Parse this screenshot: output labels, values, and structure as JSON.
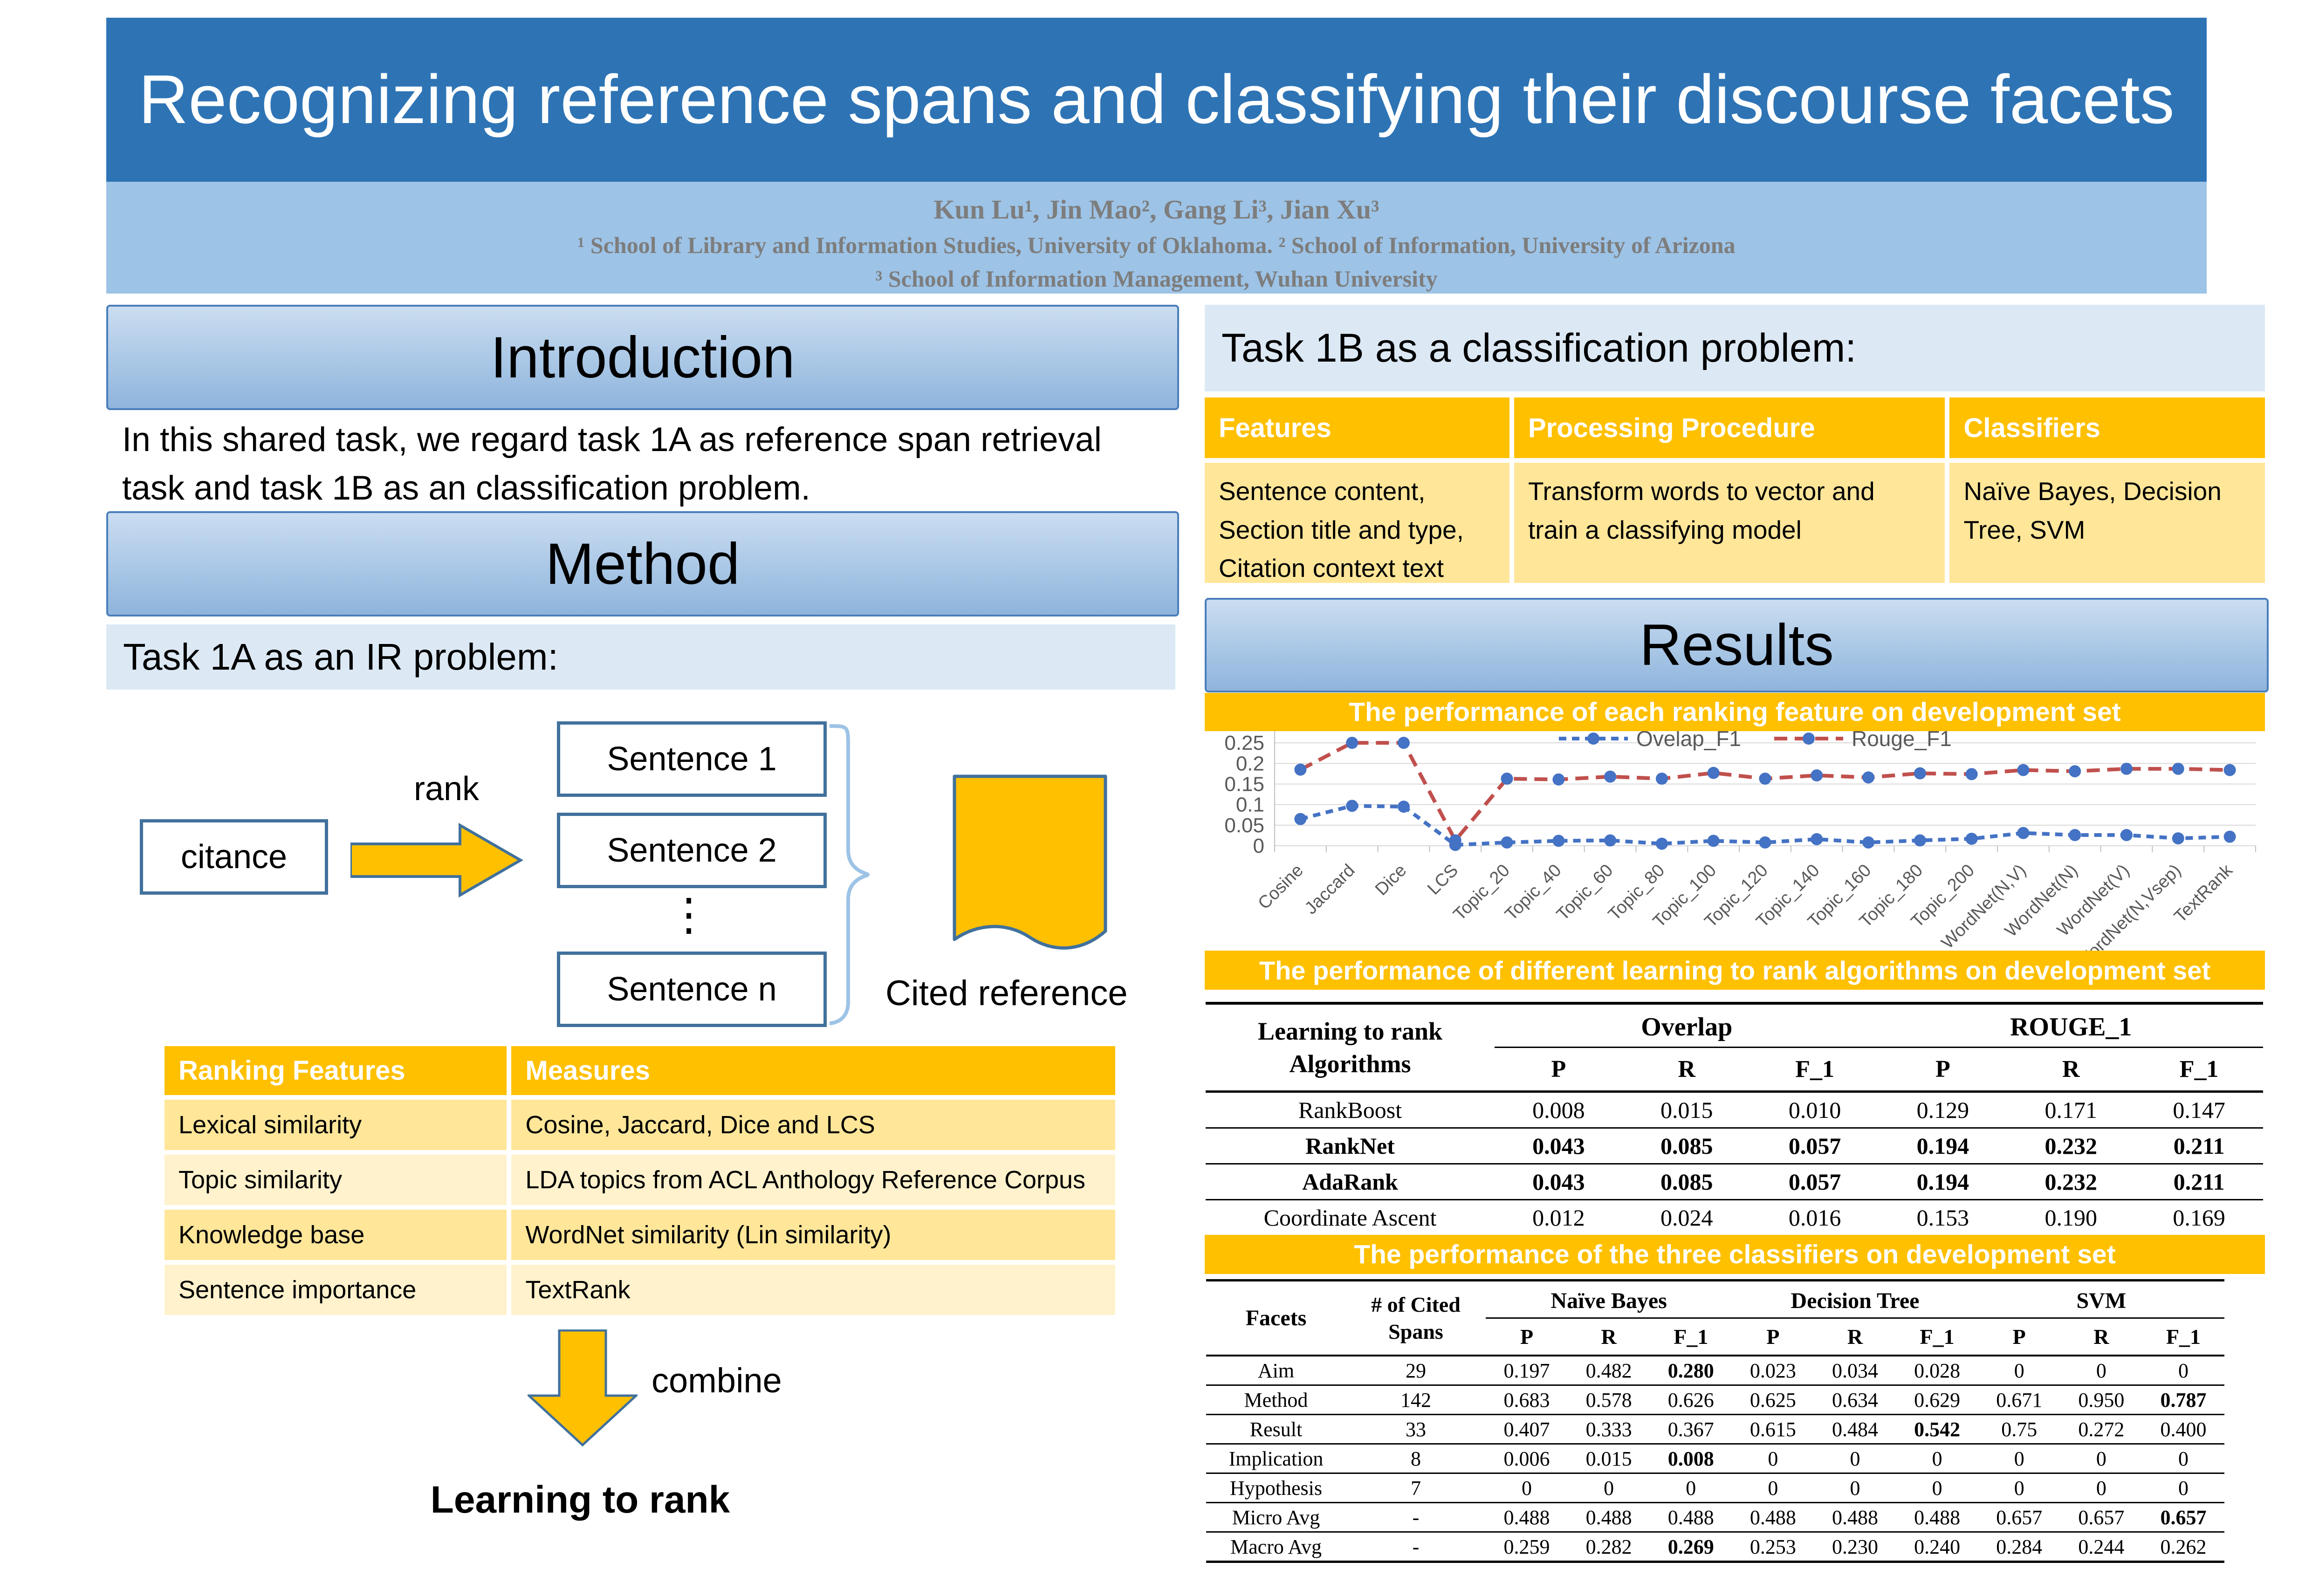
{
  "header": {
    "title": "Recognizing reference spans and classifying their discourse facets",
    "authors": "Kun Lu¹, Jin Mao², Gang Li³, Jian Xu³",
    "affiliation1": "¹ School of Library and Information Studies, University of Oklahoma. ² School of Information, University of Arizona",
    "affiliation2": "³ School of Information Management, Wuhan University"
  },
  "intro": {
    "title": "Introduction",
    "body": "In this shared task, we regard task 1A as reference span retrieval task and task 1B as an classification problem."
  },
  "method": {
    "title": "Method",
    "task1a_label": "Task 1A as an IR problem:"
  },
  "diagram": {
    "citance": "citance",
    "rank_label": "rank",
    "sentences": [
      "Sentence 1",
      "Sentence 2",
      "Sentence n"
    ],
    "dots": "⋮",
    "cited_reference": "Cited reference",
    "combine_label": "combine",
    "learning_to_rank": "Learning to rank"
  },
  "ranking_table": {
    "headers": [
      "Ranking Features",
      "Measures"
    ],
    "rows": [
      [
        "Lexical similarity",
        "Cosine, Jaccard, Dice and LCS"
      ],
      [
        "Topic similarity",
        "LDA topics from ACL Anthology Reference Corpus"
      ],
      [
        "Knowledge base",
        "WordNet similarity (Lin similarity)"
      ],
      [
        "Sentence importance",
        "TextRank"
      ]
    ]
  },
  "task1b": {
    "title": "Task 1B as a classification problem:",
    "headers": [
      "Features",
      "Processing Procedure",
      "Classifiers"
    ],
    "row": [
      "Sentence content, Section title and type, Citation context text",
      "Transform words to vector and train a classifying model",
      "Naïve Bayes, Decision Tree, SVM"
    ]
  },
  "results": {
    "title": "Results",
    "banner_ranking_features": "The performance of each ranking feature on development set",
    "banner_l2r": "The performance of different learning to rank algorithms on development set",
    "banner_classifiers": "The performance of the three classifiers on development set"
  },
  "chart_data": {
    "type": "line",
    "x": [
      "Cosine",
      "Jaccard",
      "Dice",
      "LCS",
      "Topic_20",
      "Topic_40",
      "Topic_60",
      "Topic_80",
      "Topic_100",
      "Topic_120",
      "Topic_140",
      "Topic_160",
      "Topic_180",
      "Topic_200",
      "WordNet(N,V)",
      "WordNet(N)",
      "WordNet(V)",
      "WordNet(N,Vsep)",
      "TextRank"
    ],
    "series": [
      {
        "name": "Ovelap_F1",
        "color": "#4472C4",
        "dash": "16 12",
        "values": [
          0.065,
          0.097,
          0.095,
          0.002,
          0.008,
          0.012,
          0.013,
          0.005,
          0.012,
          0.008,
          0.016,
          0.008,
          0.013,
          0.017,
          0.031,
          0.026,
          0.026,
          0.018,
          0.022
        ]
      },
      {
        "name": "Rouge_F1",
        "color": "#C0504D",
        "dash": "28 16",
        "values": [
          0.185,
          0.25,
          0.25,
          0.013,
          0.163,
          0.161,
          0.168,
          0.163,
          0.177,
          0.163,
          0.171,
          0.166,
          0.176,
          0.174,
          0.184,
          0.181,
          0.187,
          0.187,
          0.184
        ]
      }
    ],
    "marker_color": "#4472C4",
    "ylim": [
      0,
      0.3
    ],
    "ytick_step": 0.05,
    "grid": true,
    "legend_position": "top",
    "title": "",
    "xlabel": "",
    "ylabel": ""
  },
  "l2r_table": {
    "row_header_line1": "Learning to rank",
    "row_header_line2": "Algorithms",
    "groups": [
      "Overlap",
      "ROUGE_1"
    ],
    "sub_headers": [
      "P",
      "R",
      "F_1"
    ],
    "rows": [
      {
        "label": "RankBoost",
        "values": [
          "0.008",
          "0.015",
          "0.010",
          "0.129",
          "0.171",
          "0.147"
        ],
        "bold": false
      },
      {
        "label": "RankNet",
        "values": [
          "0.043",
          "0.085",
          "0.057",
          "0.194",
          "0.232",
          "0.211"
        ],
        "bold": true
      },
      {
        "label": "AdaRank",
        "values": [
          "0.043",
          "0.085",
          "0.057",
          "0.194",
          "0.232",
          "0.211"
        ],
        "bold": true
      },
      {
        "label": "Coordinate Ascent",
        "values": [
          "0.012",
          "0.024",
          "0.016",
          "0.153",
          "0.190",
          "0.169"
        ],
        "bold": false
      }
    ]
  },
  "classifier_table": {
    "col1_header": "Facets",
    "col2_header_line1": "# of Cited",
    "col2_header_line2": "Spans",
    "groups": [
      "Naïve Bayes",
      "Decision Tree",
      "SVM"
    ],
    "sub_headers": [
      "P",
      "R",
      "F_1"
    ],
    "rows": [
      {
        "label": "Aim",
        "spans": "29",
        "values": [
          "0.197",
          "0.482",
          "0.280",
          "0.023",
          "0.034",
          "0.028",
          "0",
          "0",
          "0"
        ],
        "bold": [
          false,
          false,
          true,
          false,
          false,
          false,
          false,
          false,
          false
        ]
      },
      {
        "label": "Method",
        "spans": "142",
        "values": [
          "0.683",
          "0.578",
          "0.626",
          "0.625",
          "0.634",
          "0.629",
          "0.671",
          "0.950",
          "0.787"
        ],
        "bold": [
          false,
          false,
          false,
          false,
          false,
          false,
          false,
          false,
          true
        ]
      },
      {
        "label": "Result",
        "spans": "33",
        "values": [
          "0.407",
          "0.333",
          "0.367",
          "0.615",
          "0.484",
          "0.542",
          "0.75",
          "0.272",
          "0.400"
        ],
        "bold": [
          false,
          false,
          false,
          false,
          false,
          true,
          false,
          false,
          false
        ]
      },
      {
        "label": "Implication",
        "spans": "8",
        "values": [
          "0.006",
          "0.015",
          "0.008",
          "0",
          "0",
          "0",
          "0",
          "0",
          "0"
        ],
        "bold": [
          false,
          false,
          true,
          false,
          false,
          false,
          false,
          false,
          false
        ]
      },
      {
        "label": "Hypothesis",
        "spans": "7",
        "values": [
          "0",
          "0",
          "0",
          "0",
          "0",
          "0",
          "0",
          "0",
          "0"
        ],
        "bold": [
          false,
          false,
          false,
          false,
          false,
          false,
          false,
          false,
          false
        ]
      },
      {
        "label": "Micro Avg",
        "spans": "-",
        "values": [
          "0.488",
          "0.488",
          "0.488",
          "0.488",
          "0.488",
          "0.488",
          "0.657",
          "0.657",
          "0.657"
        ],
        "bold": [
          false,
          false,
          false,
          false,
          false,
          false,
          false,
          false,
          true
        ]
      },
      {
        "label": "Macro Avg",
        "spans": "-",
        "values": [
          "0.259",
          "0.282",
          "0.269",
          "0.253",
          "0.230",
          "0.240",
          "0.284",
          "0.244",
          "0.262"
        ],
        "bold": [
          false,
          false,
          true,
          false,
          false,
          false,
          false,
          false,
          false
        ]
      }
    ]
  },
  "colors": {
    "title_blue": "#2E74B5",
    "band_blue": "#9DC3E6",
    "gold": "#FFC000",
    "gold_light": "#FFE699",
    "gold_lighter": "#FFF2CC",
    "panel_blue": "#DCE9F5",
    "shape_outline": "#41719C",
    "brace_blue": "#9DC3E6",
    "chart_blue": "#4472C4",
    "chart_red": "#C0504D",
    "axis_gray": "#595959",
    "grid_gray": "#D9D9D9"
  }
}
